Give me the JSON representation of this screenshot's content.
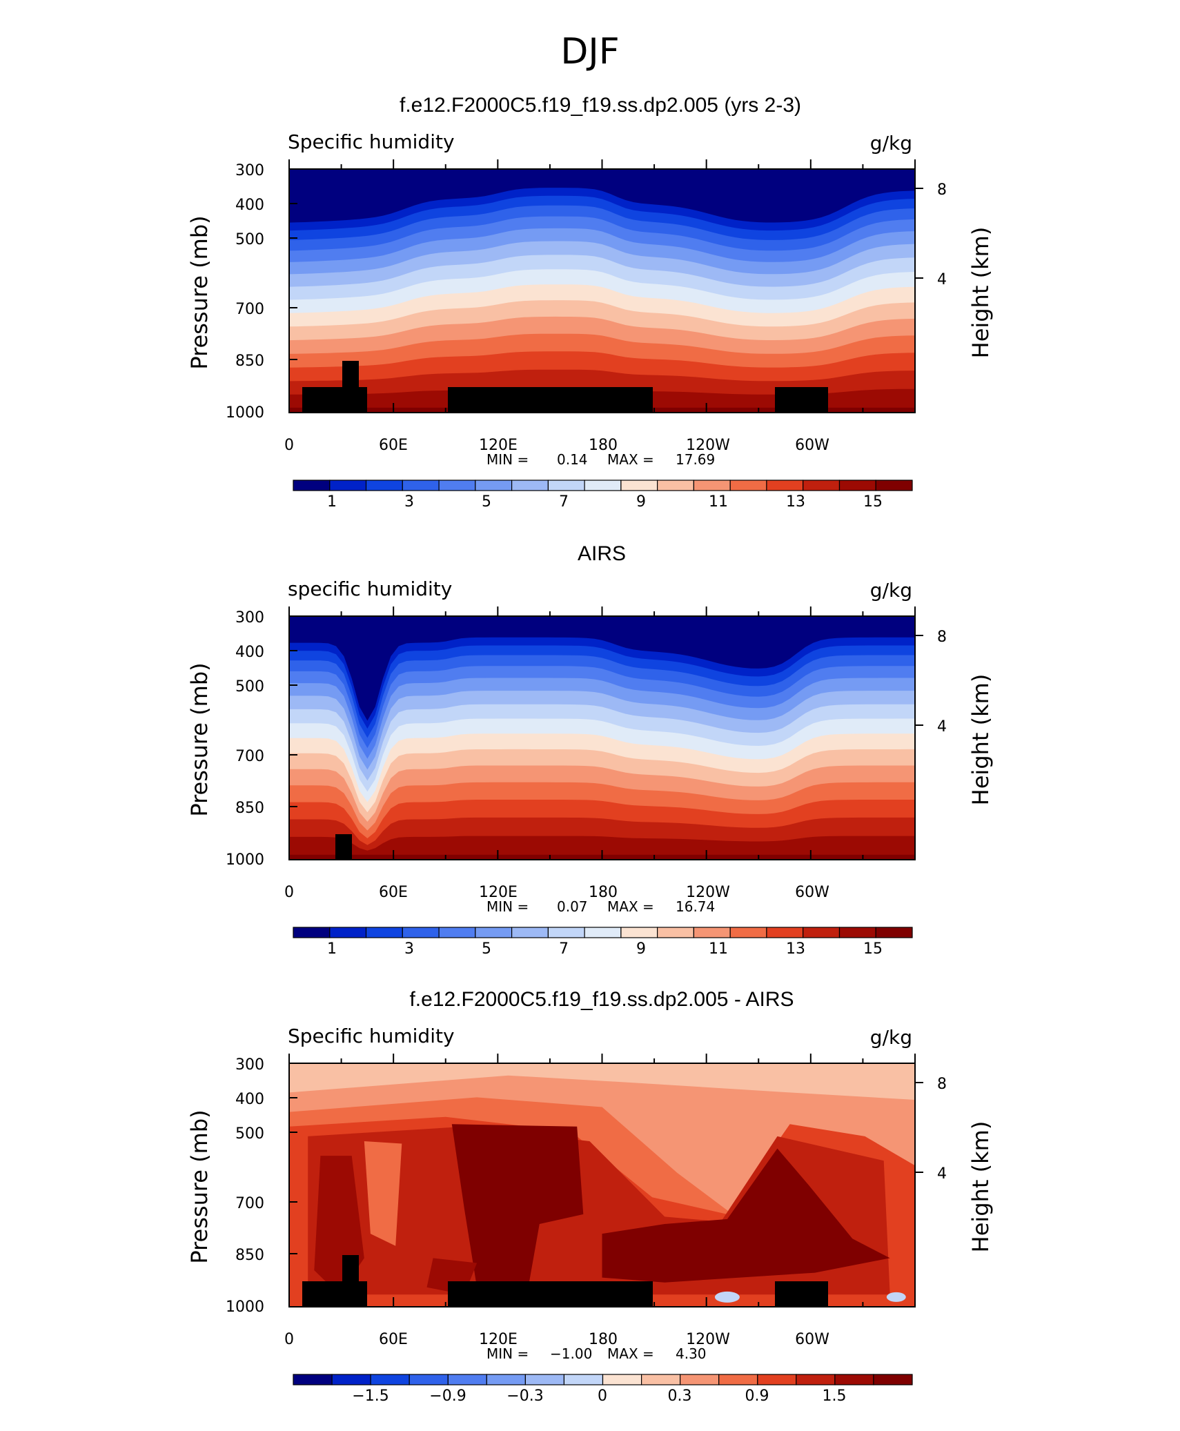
{
  "figure_title": "DJF",
  "chart_data": [
    {
      "type": "heatmap",
      "title": "f.e12.F2000C5.f19_f19.ss.dp2.005 (yrs 2-3)",
      "left_label": "Specific humidity",
      "right_label": "g/kg",
      "ylabel": "Pressure (mb)",
      "ylabel_right": "Height (km)",
      "x_ticks": [
        "0",
        "60E",
        "120E",
        "180",
        "120W",
        "60W"
      ],
      "y_ticks": [
        "300",
        "400",
        "500",
        "700",
        "850",
        "1000"
      ],
      "right_ticks": [
        "8",
        "4"
      ],
      "stats": {
        "min_label": "MIN =",
        "min": "0.14",
        "max_label": "MAX =",
        "max": "17.69"
      },
      "colorbar_labels": [
        "1",
        "3",
        "5",
        "7",
        "9",
        "11",
        "13",
        "15"
      ],
      "colorbar_levels": [
        0,
        1,
        2,
        3,
        4,
        5,
        6,
        7,
        8,
        9,
        10,
        11,
        12,
        13,
        14,
        15,
        16
      ],
      "colorbar_colors": [
        "#00007f",
        "#0022c8",
        "#0f44e0",
        "#2f62ea",
        "#507df0",
        "#759bf3",
        "#9db9f5",
        "#c2d6f8",
        "#e0ebf8",
        "#fbe3d2",
        "#f9c0a4",
        "#f59574",
        "#f06c45",
        "#e24020",
        "#c0200e",
        "#9c0a03",
        "#7f0000"
      ]
    },
    {
      "type": "heatmap",
      "title": "AIRS",
      "left_label": "specific humidity",
      "right_label": "g/kg",
      "ylabel": "Pressure (mb)",
      "ylabel_right": "Height (km)",
      "x_ticks": [
        "0",
        "60E",
        "120E",
        "180",
        "120W",
        "60W"
      ],
      "y_ticks": [
        "300",
        "400",
        "500",
        "700",
        "850",
        "1000"
      ],
      "right_ticks": [
        "8",
        "4"
      ],
      "stats": {
        "min_label": "MIN =",
        "min": "0.07",
        "max_label": "MAX =",
        "max": "16.74"
      },
      "colorbar_labels": [
        "1",
        "3",
        "5",
        "7",
        "9",
        "11",
        "13",
        "15"
      ],
      "colorbar_levels": [
        0,
        1,
        2,
        3,
        4,
        5,
        6,
        7,
        8,
        9,
        10,
        11,
        12,
        13,
        14,
        15,
        16
      ],
      "colorbar_colors": [
        "#00007f",
        "#0022c8",
        "#0f44e0",
        "#2f62ea",
        "#507df0",
        "#759bf3",
        "#9db9f5",
        "#c2d6f8",
        "#e0ebf8",
        "#fbe3d2",
        "#f9c0a4",
        "#f59574",
        "#f06c45",
        "#e24020",
        "#c0200e",
        "#9c0a03",
        "#7f0000"
      ]
    },
    {
      "type": "heatmap",
      "title": "f.e12.F2000C5.f19_f19.ss.dp2.005 - AIRS",
      "left_label": "Specific humidity",
      "right_label": "g/kg",
      "ylabel": "Pressure (mb)",
      "ylabel_right": "Height (km)",
      "x_ticks": [
        "0",
        "60E",
        "120E",
        "180",
        "120W",
        "60W"
      ],
      "y_ticks": [
        "300",
        "400",
        "500",
        "700",
        "850",
        "1000"
      ],
      "right_ticks": [
        "8",
        "4"
      ],
      "stats": {
        "min_label": "MIN =",
        "min": "−1.00",
        "max_label": "MAX =",
        "max": "4.30"
      },
      "colorbar_labels": [
        "−1.5",
        "−0.9",
        "−0.3",
        "0",
        "0.3",
        "0.9",
        "1.5"
      ],
      "colorbar_levels": [
        -2.1,
        -1.8,
        -1.5,
        -1.2,
        -0.9,
        -0.6,
        -0.3,
        0,
        0.15,
        0.3,
        0.6,
        0.9,
        1.2,
        1.5,
        1.8,
        2.1
      ],
      "colorbar_colors": [
        "#00007f",
        "#0022c8",
        "#0f44e0",
        "#2f62ea",
        "#507df0",
        "#759bf3",
        "#9db9f5",
        "#c2d6f8",
        "#fbe3d2",
        "#f9c0a4",
        "#f59574",
        "#f06c45",
        "#e24020",
        "#c0200e",
        "#9c0a03",
        "#7f0000"
      ]
    }
  ]
}
